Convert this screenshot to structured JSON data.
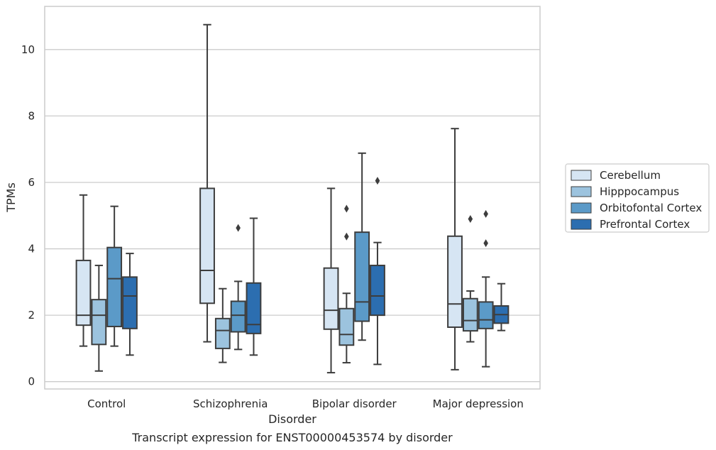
{
  "chart_data": {
    "type": "box",
    "title": "",
    "xlabel": "Disorder",
    "ylabel": "TPMs",
    "caption": "Transcript expression for ENST00000453574 by disorder",
    "categories": [
      "Control",
      "Schizophrenia",
      "Bipolar disorder",
      "Major depression"
    ],
    "ylim": [
      -0.22,
      11.3
    ],
    "yticks": [
      0,
      2,
      4,
      6,
      8,
      10
    ],
    "grid": true,
    "legend_position": "right",
    "series": [
      {
        "name": "Cerebellum",
        "color": "#d6e5f3",
        "boxes": [
          {
            "whislo": 1.07,
            "q1": 1.7,
            "med": 2.0,
            "q3": 3.65,
            "whishi": 5.62,
            "fliers": []
          },
          {
            "whislo": 1.2,
            "q1": 2.36,
            "med": 3.35,
            "q3": 5.82,
            "whishi": 10.75,
            "fliers": []
          },
          {
            "whislo": 0.27,
            "q1": 1.58,
            "med": 2.15,
            "q3": 3.42,
            "whishi": 5.82,
            "fliers": []
          },
          {
            "whislo": 0.36,
            "q1": 1.64,
            "med": 2.34,
            "q3": 4.38,
            "whishi": 7.62,
            "fliers": []
          }
        ]
      },
      {
        "name": "Hipppocampus",
        "color": "#9cc3de",
        "boxes": [
          {
            "whislo": 0.32,
            "q1": 1.12,
            "med": 2.0,
            "q3": 2.47,
            "whishi": 3.5,
            "fliers": []
          },
          {
            "whislo": 0.58,
            "q1": 1.0,
            "med": 1.54,
            "q3": 1.9,
            "whishi": 2.8,
            "fliers": []
          },
          {
            "whislo": 0.57,
            "q1": 1.1,
            "med": 1.42,
            "q3": 2.2,
            "whishi": 2.66,
            "fliers": [
              4.37,
              5.21
            ]
          },
          {
            "whislo": 1.2,
            "q1": 1.53,
            "med": 1.84,
            "q3": 2.5,
            "whishi": 2.73,
            "fliers": [
              4.9
            ]
          }
        ]
      },
      {
        "name": "Orbitofontal Cortex",
        "color": "#5b9ac8",
        "boxes": [
          {
            "whislo": 1.07,
            "q1": 1.66,
            "med": 3.1,
            "q3": 4.04,
            "whishi": 5.28,
            "fliers": []
          },
          {
            "whislo": 0.97,
            "q1": 1.5,
            "med": 2.0,
            "q3": 2.42,
            "whishi": 3.02,
            "fliers": [
              4.63
            ]
          },
          {
            "whislo": 1.25,
            "q1": 1.82,
            "med": 2.4,
            "q3": 4.5,
            "whishi": 6.88,
            "fliers": []
          },
          {
            "whislo": 0.45,
            "q1": 1.6,
            "med": 1.86,
            "q3": 2.4,
            "whishi": 3.15,
            "fliers": [
              4.17,
              5.05
            ]
          }
        ]
      },
      {
        "name": "Prefrontal Cortex",
        "color": "#2c6eb0",
        "boxes": [
          {
            "whislo": 0.8,
            "q1": 1.6,
            "med": 2.58,
            "q3": 3.15,
            "whishi": 3.86,
            "fliers": []
          },
          {
            "whislo": 0.8,
            "q1": 1.45,
            "med": 1.72,
            "q3": 2.97,
            "whishi": 4.92,
            "fliers": []
          },
          {
            "whislo": 0.52,
            "q1": 2.0,
            "med": 2.58,
            "q3": 3.5,
            "whishi": 4.19,
            "fliers": [
              6.05
            ]
          },
          {
            "whislo": 1.54,
            "q1": 1.76,
            "med": 2.02,
            "q3": 2.28,
            "whishi": 2.95,
            "fliers": []
          }
        ]
      }
    ]
  }
}
